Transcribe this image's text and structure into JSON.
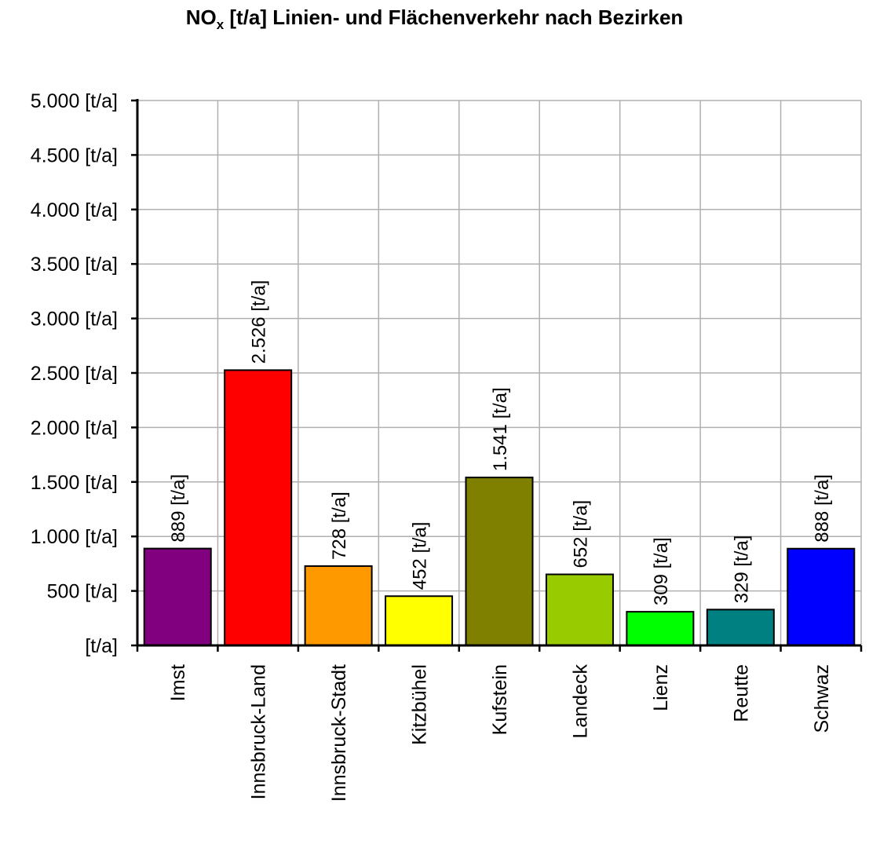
{
  "chart_data": {
    "type": "bar",
    "title_main": "NO",
    "title_sub": "x",
    "title_rest": " [t/a] Linien- und Flächenverkehr nach Bezirken",
    "categories": [
      "Imst",
      "Innsbruck-Land",
      "Innsbruck-Stadt",
      "Kitzbühel",
      "Kufstein",
      "Landeck",
      "Lienz",
      "Reutte",
      "Schwaz"
    ],
    "values": [
      889,
      2526,
      728,
      452,
      1541,
      652,
      309,
      329,
      888
    ],
    "data_labels": [
      "889 [t/a]",
      "2.526 [t/a]",
      "728 [t/a]",
      "452 [t/a]",
      "1.541 [t/a]",
      "652 [t/a]",
      "309 [t/a]",
      "329 [t/a]",
      "888 [t/a]"
    ],
    "colors": [
      "#800080",
      "#ff0000",
      "#ff9900",
      "#ffff00",
      "#808000",
      "#99cc00",
      "#00ff00",
      "#008080",
      "#0000ff"
    ],
    "ylim": [
      0,
      5000
    ],
    "yticks": [
      0,
      500,
      1000,
      1500,
      2000,
      2500,
      3000,
      3500,
      4000,
      4500,
      5000
    ],
    "ytick_labels": [
      "[t/a]",
      "500 [t/a]",
      "1.000 [t/a]",
      "1.500 [t/a]",
      "2.000 [t/a]",
      "2.500 [t/a]",
      "3.000 [t/a]",
      "3.500 [t/a]",
      "4.000 [t/a]",
      "4.500 [t/a]",
      "5.000 [t/a]"
    ],
    "grid": true,
    "legend": "none"
  }
}
